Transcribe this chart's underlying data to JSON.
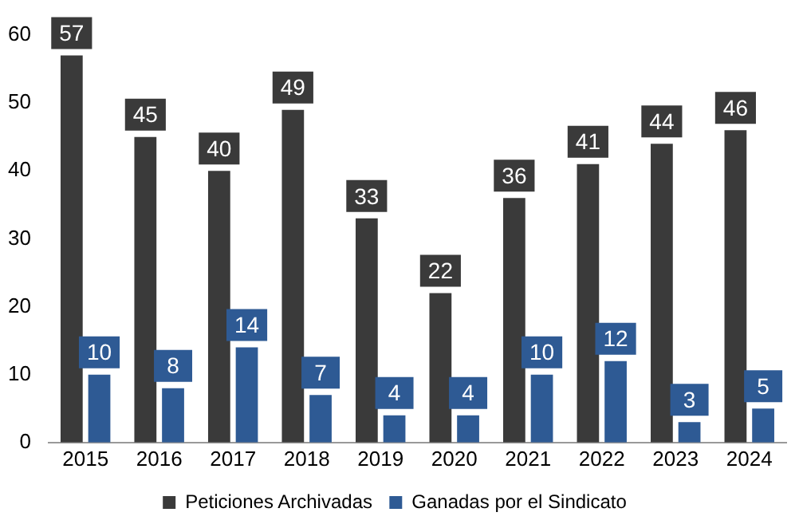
{
  "chart_data": {
    "type": "bar",
    "categories": [
      "2015",
      "2016",
      "2017",
      "2018",
      "2019",
      "2020",
      "2021",
      "2022",
      "2023",
      "2024"
    ],
    "series": [
      {
        "name": "Peticiones Archivadas",
        "color": "#3a3a3a",
        "values": [
          57,
          45,
          40,
          49,
          33,
          22,
          36,
          41,
          44,
          46
        ]
      },
      {
        "name": "Ganadas por el Sindicato",
        "color": "#2e5a94",
        "values": [
          10,
          8,
          14,
          7,
          4,
          4,
          10,
          12,
          3,
          5
        ]
      }
    ],
    "ylim": [
      0,
      60
    ],
    "yticks": [
      0,
      10,
      20,
      30,
      40,
      50,
      60
    ],
    "grid": false,
    "legend": "bottom",
    "data_labels": true
  }
}
